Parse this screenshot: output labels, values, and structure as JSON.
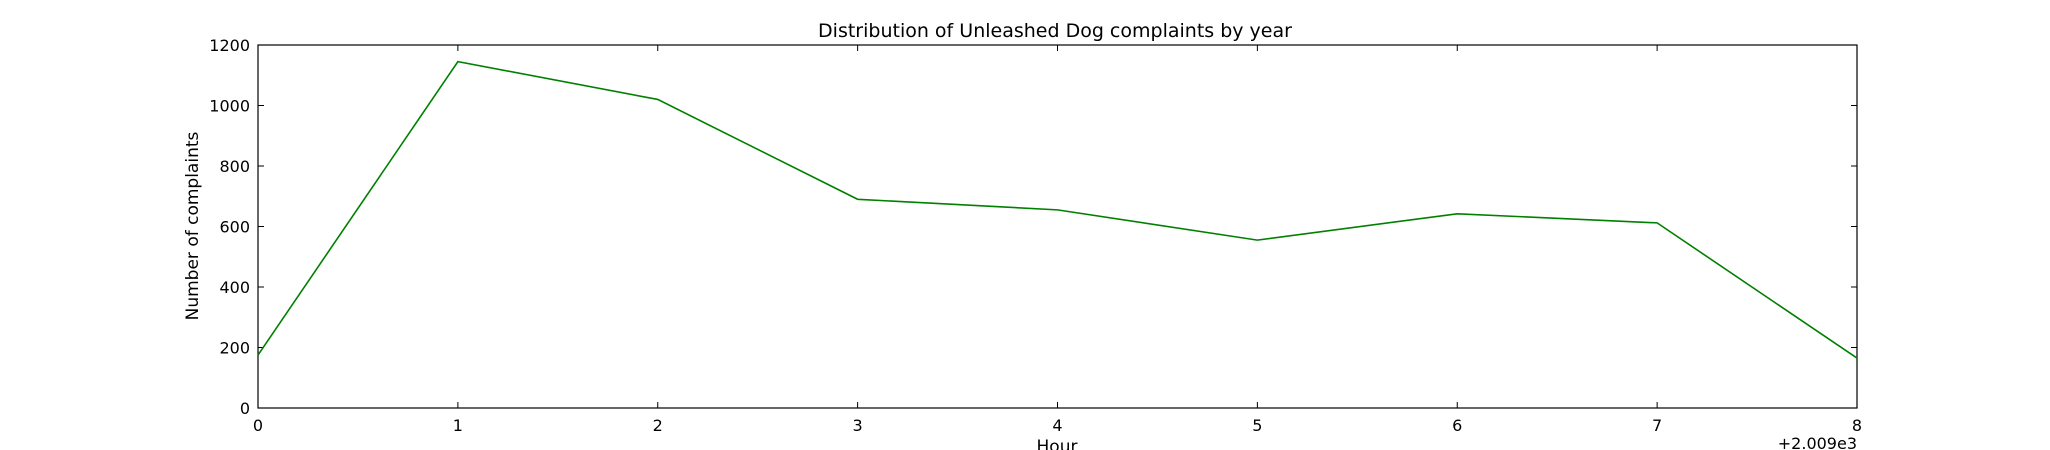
{
  "chart_data": {
    "type": "line",
    "title": "Distribution of  Unleashed Dog complaints by year",
    "xlabel": "Hour",
    "ylabel": "Number of complaints",
    "x_offset_label": "+2.009e3",
    "x": [
      0,
      1,
      2,
      3,
      4,
      5,
      6,
      7,
      8
    ],
    "xlim": [
      0,
      8
    ],
    "ylim": [
      0,
      1200
    ],
    "xticks": [
      "0",
      "1",
      "2",
      "3",
      "4",
      "5",
      "6",
      "7",
      "8"
    ],
    "yticks": [
      "0",
      "200",
      "400",
      "600",
      "800",
      "1000",
      "1200"
    ],
    "grid": false,
    "series": [
      {
        "color": "#008000",
        "values": [
          175,
          1145,
          1020,
          690,
          655,
          555,
          642,
          612,
          165
        ]
      }
    ]
  }
}
